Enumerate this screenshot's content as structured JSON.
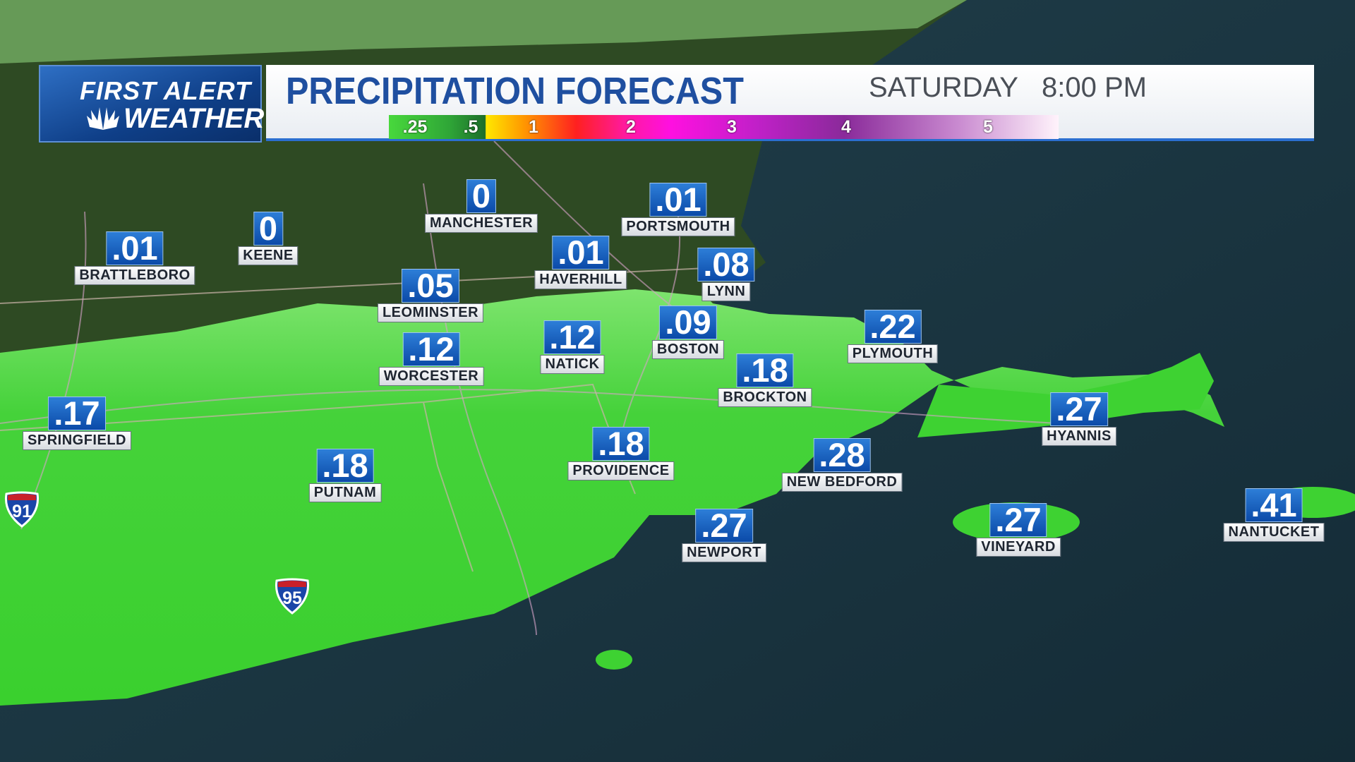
{
  "header": {
    "logo": {
      "line1": "FIRST ALERT",
      "line2": "WEATHER"
    },
    "title": "PRECIPITATION FORECAST",
    "day": "SATURDAY",
    "time": "8:00 PM"
  },
  "legend": {
    "labels": [
      ".25",
      ".5",
      "1",
      "2",
      "3",
      "4",
      "5"
    ]
  },
  "cities": [
    {
      "name": "MANCHESTER",
      "amount": "0"
    },
    {
      "name": "KEENE",
      "amount": "0"
    },
    {
      "name": "BRATTLEBORO",
      "amount": ".01"
    },
    {
      "name": "PORTSMOUTH",
      "amount": ".01"
    },
    {
      "name": "HAVERHILL",
      "amount": ".01"
    },
    {
      "name": "LYNN",
      "amount": ".08"
    },
    {
      "name": "LEOMINSTER",
      "amount": ".05"
    },
    {
      "name": "BOSTON",
      "amount": ".09"
    },
    {
      "name": "NATICK",
      "amount": ".12"
    },
    {
      "name": "WORCESTER",
      "amount": ".12"
    },
    {
      "name": "PLYMOUTH",
      "amount": ".22"
    },
    {
      "name": "BROCKTON",
      "amount": ".18"
    },
    {
      "name": "SPRINGFIELD",
      "amount": ".17"
    },
    {
      "name": "HYANNIS",
      "amount": ".27"
    },
    {
      "name": "PROVIDENCE",
      "amount": ".18"
    },
    {
      "name": "NEW BEDFORD",
      "amount": ".28"
    },
    {
      "name": "PUTNAM",
      "amount": ".18"
    },
    {
      "name": "NEWPORT",
      "amount": ".27"
    },
    {
      "name": "VINEYARD",
      "amount": ".27"
    },
    {
      "name": "NANTUCKET",
      "amount": ".41"
    }
  ],
  "shields": [
    "91",
    "95"
  ]
}
